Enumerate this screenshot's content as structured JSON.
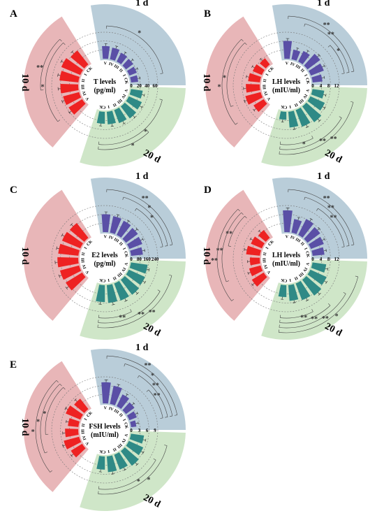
{
  "colors": {
    "sector_1d": "#b9cdd9",
    "sector_10d": "#e8b6b8",
    "sector_20d": "#cfe6c8",
    "bar_1d": "#5a4fa6",
    "bar_10d": "#ee2222",
    "bar_20d": "#2f8a86"
  },
  "group_labels": [
    "1 d",
    "10 d",
    "20 d"
  ],
  "categories": [
    "CK",
    "I",
    "II",
    "III",
    "IV",
    "V"
  ],
  "chart_data": [
    {
      "type": "bar",
      "subtype": "circular",
      "panel": "A",
      "center_label": [
        "T levels",
        "(pg/ml)"
      ],
      "ticks": [
        "0",
        "20",
        "40",
        "60"
      ],
      "rmax": 60,
      "groups": [
        {
          "name": "1 d",
          "values": [
            18,
            20,
            23,
            25,
            30,
            32
          ]
        },
        {
          "name": "10 d",
          "values": [
            45,
            52,
            48,
            45,
            42,
            40
          ]
        },
        {
          "name": "20 d",
          "values": [
            30,
            32,
            35,
            38,
            36,
            30
          ]
        }
      ],
      "brackets": [
        {
          "group": 0,
          "from": 0,
          "to": 5,
          "level": 1,
          "sig": "*"
        },
        {
          "group": 1,
          "from": 0,
          "to": 5,
          "level": 1,
          "sig": "*"
        },
        {
          "group": 1,
          "from": 0,
          "to": 3,
          "level": 2,
          "sig": "**"
        },
        {
          "group": 2,
          "from": 0,
          "to": 5,
          "level": 1,
          "sig": "*"
        },
        {
          "group": 2,
          "from": 0,
          "to": 3,
          "level": 2,
          "sig": "*"
        }
      ]
    },
    {
      "type": "bar",
      "subtype": "circular",
      "panel": "B",
      "center_label": [
        "LH levels",
        "(mIU/ml)"
      ],
      "ticks": [
        "0",
        "4",
        "8",
        "12"
      ],
      "rmax": 12,
      "groups": [
        {
          "name": "1 d",
          "values": [
            5,
            7,
            8,
            6,
            5,
            9
          ]
        },
        {
          "name": "10 d",
          "values": [
            4,
            5,
            6,
            7,
            8,
            6
          ]
        },
        {
          "name": "20 d",
          "values": [
            4,
            8,
            9,
            10,
            8,
            6
          ]
        }
      ],
      "brackets": [
        {
          "group": 0,
          "from": 0,
          "to": 2,
          "level": 1,
          "sig": "*"
        },
        {
          "group": 0,
          "from": 0,
          "to": 4,
          "level": 2,
          "sig": "**"
        },
        {
          "group": 0,
          "from": 0,
          "to": 5,
          "level": 3,
          "sig": "**"
        },
        {
          "group": 1,
          "from": 0,
          "to": 4,
          "level": 1,
          "sig": "*"
        },
        {
          "group": 1,
          "from": 0,
          "to": 5,
          "level": 2,
          "sig": "*"
        },
        {
          "group": 2,
          "from": 0,
          "to": 2,
          "level": 1,
          "sig": "*"
        },
        {
          "group": 2,
          "from": 0,
          "to": 4,
          "level": 2,
          "sig": "**"
        },
        {
          "group": 2,
          "from": 0,
          "to": 5,
          "level": 3,
          "sig": "**"
        }
      ]
    },
    {
      "type": "bar",
      "subtype": "circular",
      "panel": "C",
      "center_label": [
        "E2 levels",
        "(pg/ml)"
      ],
      "ticks": [
        "0",
        "80",
        "160",
        "240"
      ],
      "rmax": 240,
      "groups": [
        {
          "name": "1 d",
          "values": [
            120,
            140,
            150,
            160,
            170,
            180
          ]
        },
        {
          "name": "10 d",
          "values": [
            190,
            200,
            205,
            210,
            200,
            195
          ]
        },
        {
          "name": "20 d",
          "values": [
            170,
            180,
            185,
            190,
            180,
            170
          ]
        }
      ],
      "brackets": [
        {
          "group": 0,
          "from": 0,
          "to": 3,
          "level": 1,
          "sig": "*"
        },
        {
          "group": 0,
          "from": 0,
          "to": 4,
          "level": 2,
          "sig": "*"
        },
        {
          "group": 0,
          "from": 0,
          "to": 5,
          "level": 3,
          "sig": "**"
        },
        {
          "group": 2,
          "from": 0,
          "to": 2,
          "level": 1,
          "sig": "**"
        },
        {
          "group": 2,
          "from": 0,
          "to": 4,
          "level": 2,
          "sig": "**"
        },
        {
          "group": 2,
          "from": 0,
          "to": 5,
          "level": 3,
          "sig": "**"
        }
      ]
    },
    {
      "type": "bar",
      "subtype": "circular",
      "panel": "D",
      "center_label": [
        "LH levels",
        "(mIU/ml)"
      ],
      "ticks": [
        "0",
        "4",
        "8",
        "12"
      ],
      "rmax": 12,
      "groups": [
        {
          "name": "1 d",
          "values": [
            6,
            7,
            8,
            9,
            7,
            11
          ]
        },
        {
          "name": "10 d",
          "values": [
            5,
            6,
            7,
            5,
            6,
            7
          ]
        },
        {
          "name": "20 d",
          "values": [
            6,
            8,
            9,
            10,
            9,
            7
          ]
        }
      ],
      "brackets": [
        {
          "group": 0,
          "from": 0,
          "to": 3,
          "level": 1,
          "sig": "**"
        },
        {
          "group": 0,
          "from": 0,
          "to": 4,
          "level": 2,
          "sig": "**"
        },
        {
          "group": 0,
          "from": 0,
          "to": 5,
          "level": 3,
          "sig": "**"
        },
        {
          "group": 1,
          "from": 0,
          "to": 2,
          "level": 1,
          "sig": "**"
        },
        {
          "group": 1,
          "from": 0,
          "to": 4,
          "level": 2,
          "sig": "**"
        },
        {
          "group": 1,
          "from": 0,
          "to": 5,
          "level": 3,
          "sig": "**"
        },
        {
          "group": 2,
          "from": 0,
          "to": 2,
          "level": 1,
          "sig": "**"
        },
        {
          "group": 2,
          "from": 0,
          "to": 3,
          "level": 2,
          "sig": "**"
        },
        {
          "group": 2,
          "from": 0,
          "to": 4,
          "level": 3,
          "sig": "**"
        },
        {
          "group": 2,
          "from": 0,
          "to": 5,
          "level": 4,
          "sig": "*"
        }
      ]
    },
    {
      "type": "bar",
      "subtype": "circular",
      "panel": "E",
      "center_label": [
        "FSH levels",
        "(mIU/ml)"
      ],
      "ticks": [
        "0",
        "3",
        "6",
        "9"
      ],
      "rmax": 9,
      "groups": [
        {
          "name": "1 d",
          "values": [
            2,
            3,
            4,
            5,
            7,
            8
          ]
        },
        {
          "name": "10 d",
          "values": [
            5,
            6,
            4,
            5,
            6,
            5
          ]
        },
        {
          "name": "20 d",
          "values": [
            5,
            6,
            6,
            7,
            6,
            5
          ]
        }
      ],
      "brackets": [
        {
          "group": 0,
          "from": 0,
          "to": 2,
          "level": 1,
          "sig": "**"
        },
        {
          "group": 0,
          "from": 0,
          "to": 3,
          "level": 2,
          "sig": "**"
        },
        {
          "group": 0,
          "from": 0,
          "to": 4,
          "level": 3,
          "sig": "*"
        },
        {
          "group": 0,
          "from": 0,
          "to": 5,
          "level": 4,
          "sig": "**"
        },
        {
          "group": 1,
          "from": 0,
          "to": 3,
          "level": 1,
          "sig": "*"
        },
        {
          "group": 1,
          "from": 0,
          "to": 4,
          "level": 2,
          "sig": "*"
        },
        {
          "group": 1,
          "from": 0,
          "to": 5,
          "level": 3,
          "sig": "*"
        },
        {
          "group": 2,
          "from": 0,
          "to": 4,
          "level": 1,
          "sig": "*"
        },
        {
          "group": 2,
          "from": 0,
          "to": 5,
          "level": 2,
          "sig": "*"
        }
      ]
    }
  ]
}
